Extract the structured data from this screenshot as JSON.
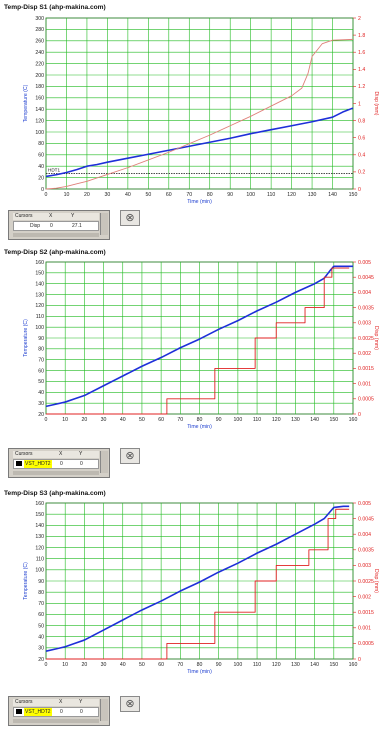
{
  "colors": {
    "temp_line": "#1e2fd9",
    "disp_line": "#e0807a",
    "disp_axis": "#e02020",
    "grid": "#22bb22",
    "temp_axis": "#2040d0"
  },
  "charts": [
    {
      "title": "Temp-Disp S1 (ahp-makina.com)",
      "cursor": {
        "header": [
          "Cursors",
          "X",
          "Y"
        ],
        "name": "Disp",
        "x": "0",
        "y": "27.1",
        "highlight": false
      },
      "extra_label": "HDT1"
    },
    {
      "title": "Temp-Disp S2 (ahp-makina.com)",
      "cursor": {
        "header": [
          "Cursors",
          "X",
          "Y"
        ],
        "name": "VST_HDT2",
        "x": "0",
        "y": "0",
        "highlight": true
      },
      "extra_label": ""
    },
    {
      "title": "Temp-Disp S3 (ahp-makina.com)",
      "cursor": {
        "header": [
          "Cursors",
          "X",
          "Y"
        ],
        "name": "VST_HDT2",
        "x": "0",
        "y": "0",
        "highlight": true
      },
      "extra_label": ""
    }
  ],
  "chart_data": [
    {
      "type": "line",
      "title": "Temp-Disp S1 (ahp-makina.com)",
      "xlabel": "Time (min)",
      "ylabel": "Temperature (C)",
      "y2label": "Disp (mm)",
      "xlim": [
        0,
        150
      ],
      "ylim": [
        0,
        300
      ],
      "y2lim": [
        0,
        2
      ],
      "xticks": [
        0,
        10,
        20,
        30,
        40,
        50,
        60,
        70,
        80,
        90,
        100,
        110,
        120,
        130,
        140,
        150
      ],
      "yticks": [
        0,
        20,
        40,
        60,
        80,
        100,
        120,
        140,
        160,
        180,
        200,
        220,
        240,
        260,
        280,
        300
      ],
      "y2ticks": [
        "0",
        "0.2",
        "0.4",
        "0.6",
        "0.8",
        "1",
        "1.2",
        "1.4",
        "1.6",
        "1.8",
        "2"
      ],
      "y2tick_values": [
        0,
        0.2,
        0.4,
        0.6,
        0.8,
        1,
        1.2,
        1.4,
        1.6,
        1.8,
        2
      ],
      "hline": {
        "y": 27,
        "label": "HDT1"
      },
      "series": [
        {
          "name": "",
          "axis": "left",
          "x": [
            0,
            5,
            10,
            15,
            20,
            25,
            30,
            40,
            50,
            60,
            70,
            80,
            90,
            100,
            110,
            120,
            130,
            140,
            145,
            150
          ],
          "y": [
            22,
            25,
            29,
            34,
            40,
            43,
            47,
            54,
            61,
            68,
            75,
            82,
            89,
            97,
            104,
            111,
            118,
            126,
            135,
            142
          ]
        },
        {
          "name": "",
          "axis": "right",
          "x": [
            0,
            5,
            10,
            15,
            20,
            30,
            40,
            50,
            60,
            70,
            80,
            90,
            100,
            110,
            120,
            125,
            128,
            130,
            135,
            140,
            150
          ],
          "y": [
            0,
            0.01,
            0.03,
            0.06,
            0.09,
            0.17,
            0.25,
            0.34,
            0.43,
            0.53,
            0.63,
            0.74,
            0.85,
            0.97,
            1.09,
            1.18,
            1.35,
            1.55,
            1.7,
            1.74,
            1.75
          ]
        }
      ]
    },
    {
      "type": "line",
      "title": "Temp-Disp S2 (ahp-makina.com)",
      "xlabel": "Time (min)",
      "ylabel": "Temperature (C)",
      "y2label": "Disp (mm)",
      "xlim": [
        0,
        160
      ],
      "ylim": [
        20,
        160
      ],
      "y2lim": [
        0,
        0.005
      ],
      "xticks": [
        0,
        10,
        20,
        30,
        40,
        50,
        60,
        70,
        80,
        90,
        100,
        110,
        120,
        130,
        140,
        150,
        160
      ],
      "yticks": [
        20,
        30,
        40,
        50,
        60,
        70,
        80,
        90,
        100,
        110,
        120,
        130,
        140,
        150,
        160
      ],
      "y2ticks": [
        "0",
        "0.0005",
        "0.001",
        "0.0015",
        "0.002",
        "0.0025",
        "0.003",
        "0.0035",
        "0.004",
        "0.0045",
        "0.005"
      ],
      "y2tick_values": [
        0,
        0.0005,
        0.001,
        0.0015,
        0.002,
        0.0025,
        0.003,
        0.0035,
        0.004,
        0.0045,
        0.005
      ],
      "series": [
        {
          "name": "",
          "axis": "left",
          "x": [
            0,
            5,
            10,
            15,
            20,
            30,
            40,
            50,
            60,
            70,
            80,
            90,
            100,
            110,
            120,
            130,
            140,
            145,
            148,
            150,
            155,
            160
          ],
          "y": [
            27,
            29,
            31,
            34,
            37,
            46,
            55,
            64,
            72,
            81,
            89,
            98,
            106,
            115,
            123,
            132,
            140,
            145,
            152,
            156,
            156,
            156
          ]
        },
        {
          "name": "",
          "axis": "right",
          "x": [
            0,
            63,
            63,
            88,
            88,
            109,
            109,
            120,
            120,
            135,
            135,
            145,
            145,
            149,
            149,
            158
          ],
          "y": [
            0,
            0,
            0.0005,
            0.0005,
            0.0015,
            0.0015,
            0.0025,
            0.0025,
            0.003,
            0.003,
            0.0035,
            0.0035,
            0.0045,
            0.0045,
            0.0048,
            0.0048
          ]
        }
      ]
    },
    {
      "type": "line",
      "title": "Temp-Disp S3 (ahp-makina.com)",
      "xlabel": "Time (min)",
      "ylabel": "Temperature (C)",
      "y2label": "Disp (mm)",
      "xlim": [
        0,
        160
      ],
      "ylim": [
        20,
        160
      ],
      "y2lim": [
        0,
        0.005
      ],
      "xticks": [
        0,
        10,
        20,
        30,
        40,
        50,
        60,
        70,
        80,
        90,
        100,
        110,
        120,
        130,
        140,
        150,
        160
      ],
      "yticks": [
        20,
        30,
        40,
        50,
        60,
        70,
        80,
        90,
        100,
        110,
        120,
        130,
        140,
        150,
        160
      ],
      "y2ticks": [
        "0",
        "0.0005",
        "0.001",
        "0.0015",
        "0.002",
        "0.0025",
        "0.003",
        "0.0035",
        "0.004",
        "0.0045",
        "0.005"
      ],
      "y2tick_values": [
        0,
        0.0005,
        0.001,
        0.0015,
        0.002,
        0.0025,
        0.003,
        0.0035,
        0.004,
        0.0045,
        0.005
      ],
      "series": [
        {
          "name": "",
          "axis": "left",
          "x": [
            0,
            5,
            10,
            15,
            20,
            30,
            40,
            50,
            60,
            70,
            80,
            90,
            100,
            110,
            120,
            130,
            140,
            145,
            148,
            150,
            155,
            158
          ],
          "y": [
            27,
            29,
            31,
            34,
            37,
            46,
            55,
            64,
            72,
            81,
            89,
            98,
            106,
            115,
            123,
            132,
            141,
            146,
            152,
            156,
            157,
            157
          ]
        },
        {
          "name": "",
          "axis": "right",
          "x": [
            0,
            63,
            63,
            88,
            88,
            109,
            109,
            120,
            120,
            137,
            137,
            147,
            147,
            151,
            151,
            158
          ],
          "y": [
            0,
            0,
            0.0005,
            0.0005,
            0.0015,
            0.0015,
            0.0025,
            0.0025,
            0.003,
            0.003,
            0.0035,
            0.0035,
            0.0045,
            0.0045,
            0.0048,
            0.0048
          ]
        }
      ]
    }
  ]
}
